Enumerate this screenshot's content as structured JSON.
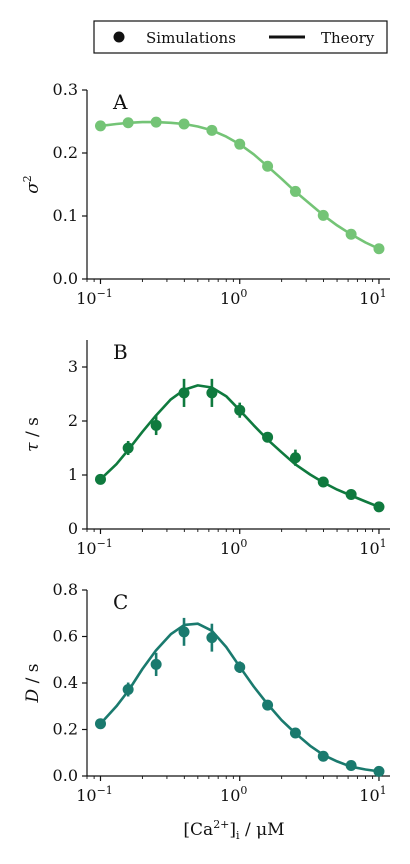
{
  "legend": {
    "entries": [
      {
        "label": "Simulations",
        "marker": "dot"
      },
      {
        "label": "Theory",
        "marker": "line"
      }
    ]
  },
  "xaxis": {
    "scale": "log",
    "range": [
      0.08,
      12
    ],
    "ticks": [
      0.1,
      1,
      10
    ],
    "tick_labels": [
      {
        "base": "10",
        "exp": "−1"
      },
      {
        "base": "10",
        "exp": "0"
      },
      {
        "base": "10",
        "exp": "1"
      }
    ],
    "label": {
      "pre": "[Ca",
      "sup": "2+",
      "post": "]",
      "sub": "i",
      "unit": " / μM"
    }
  },
  "colors": {
    "A": "#74c476",
    "B": "#0f7a3e",
    "C": "#1a7a6e"
  },
  "chart_data": [
    {
      "type": "scatter",
      "panel_label": "A",
      "ylabel": {
        "base": "σ",
        "sup": "2",
        "unit": ""
      },
      "ylim": [
        0,
        0.3
      ],
      "yticks": [
        0,
        0.1,
        0.2,
        0.3
      ],
      "ytick_labels": [
        "0.0",
        "0.1",
        "0.2",
        "0.3"
      ],
      "x": [
        0.1,
        0.158,
        0.251,
        0.398,
        0.631,
        1.0,
        1.585,
        2.512,
        3.981,
        6.31,
        10.0
      ],
      "y": [
        0.243,
        0.248,
        0.249,
        0.246,
        0.236,
        0.214,
        0.179,
        0.139,
        0.101,
        0.071,
        0.048
      ],
      "yerr": [
        0,
        0,
        0,
        0,
        0,
        0,
        0,
        0,
        0,
        0,
        0
      ],
      "theory_x": [
        0.1,
        0.13,
        0.16,
        0.2,
        0.25,
        0.32,
        0.4,
        0.5,
        0.63,
        0.8,
        1.0,
        1.26,
        1.58,
        2.0,
        2.5,
        3.2,
        4.0,
        5.0,
        6.3,
        8.0,
        10.0
      ],
      "theory_y": [
        0.243,
        0.246,
        0.248,
        0.249,
        0.249,
        0.248,
        0.246,
        0.242,
        0.236,
        0.226,
        0.214,
        0.198,
        0.179,
        0.159,
        0.139,
        0.119,
        0.101,
        0.085,
        0.071,
        0.058,
        0.048
      ]
    },
    {
      "type": "scatter",
      "panel_label": "B",
      "ylabel": {
        "base": "τ",
        "sup": "",
        "unit": " / s"
      },
      "ylim": [
        0,
        3.5
      ],
      "yticks": [
        0,
        1,
        2,
        3
      ],
      "ytick_labels": [
        "0",
        "1",
        "2",
        "3"
      ],
      "x": [
        0.1,
        0.158,
        0.251,
        0.398,
        0.631,
        1.0,
        1.585,
        2.512,
        3.981,
        6.31,
        10.0
      ],
      "y": [
        0.92,
        1.5,
        1.92,
        2.52,
        2.52,
        2.2,
        1.7,
        1.32,
        0.87,
        0.64,
        0.41
      ],
      "yerr": [
        0,
        0.13,
        0.18,
        0.26,
        0.26,
        0.14,
        0.08,
        0.15,
        0.05,
        0.04,
        0.03
      ],
      "theory_x": [
        0.1,
        0.13,
        0.16,
        0.2,
        0.25,
        0.32,
        0.4,
        0.5,
        0.63,
        0.8,
        1.0,
        1.26,
        1.58,
        2.0,
        2.5,
        3.2,
        4.0,
        5.0,
        6.3,
        8.0,
        10.0
      ],
      "theory_y": [
        0.92,
        1.2,
        1.48,
        1.8,
        2.1,
        2.4,
        2.58,
        2.66,
        2.62,
        2.46,
        2.2,
        1.92,
        1.66,
        1.42,
        1.2,
        1.01,
        0.86,
        0.73,
        0.62,
        0.51,
        0.41
      ]
    },
    {
      "type": "scatter",
      "panel_label": "C",
      "ylabel": {
        "base": "D",
        "sup": "",
        "unit": " / s"
      },
      "ylim": [
        0,
        0.8
      ],
      "yticks": [
        0,
        0.2,
        0.4,
        0.6,
        0.8
      ],
      "ytick_labels": [
        "0.0",
        "0.2",
        "0.4",
        "0.6",
        "0.8"
      ],
      "x": [
        0.1,
        0.158,
        0.251,
        0.398,
        0.631,
        1.0,
        1.585,
        2.512,
        3.981,
        6.31,
        10.0
      ],
      "y": [
        0.225,
        0.372,
        0.48,
        0.62,
        0.595,
        0.468,
        0.305,
        0.185,
        0.085,
        0.045,
        0.02
      ],
      "yerr": [
        0,
        0.03,
        0.05,
        0.06,
        0.06,
        0.025,
        0.015,
        0.012,
        0.01,
        0.008,
        0.006
      ],
      "theory_x": [
        0.1,
        0.13,
        0.16,
        0.2,
        0.25,
        0.32,
        0.4,
        0.5,
        0.63,
        0.8,
        1.0,
        1.26,
        1.58,
        2.0,
        2.5,
        3.2,
        4.0,
        5.0,
        6.3,
        8.0,
        10.0
      ],
      "theory_y": [
        0.225,
        0.3,
        0.37,
        0.46,
        0.54,
        0.61,
        0.65,
        0.655,
        0.625,
        0.555,
        0.47,
        0.385,
        0.31,
        0.24,
        0.185,
        0.13,
        0.09,
        0.063,
        0.04,
        0.028,
        0.02
      ]
    }
  ]
}
